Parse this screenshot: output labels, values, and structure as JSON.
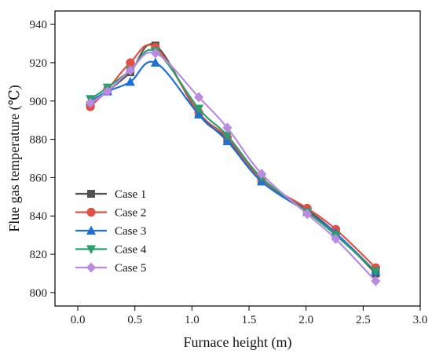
{
  "chart_data": {
    "type": "line",
    "xlabel": "Furnace height (m)",
    "ylabel": "Flue gas temperature (℃)",
    "xlim": [
      -0.2,
      3.0
    ],
    "ylim": [
      793,
      947
    ],
    "xticks": [
      0.0,
      0.5,
      1.0,
      1.5,
      2.0,
      2.5,
      3.0
    ],
    "xtick_labels": [
      "0.0",
      "0.5",
      "1.0",
      "1.5",
      "2.0",
      "2.5",
      "3.0"
    ],
    "yticks": [
      800,
      820,
      840,
      860,
      880,
      900,
      920,
      940
    ],
    "ytick_labels": [
      "800",
      "820",
      "840",
      "860",
      "880",
      "900",
      "920",
      "940"
    ],
    "grid": false,
    "legend_position": "left",
    "x": [
      0.11,
      0.26,
      0.46,
      0.68,
      1.06,
      1.31,
      1.61,
      2.01,
      2.26,
      2.61
    ],
    "series": [
      {
        "name": "Case 1",
        "color": "#505050",
        "marker": "square",
        "values": [
          898,
          905,
          915,
          929,
          893,
          880,
          858,
          843,
          831,
          810
        ]
      },
      {
        "name": "Case 2",
        "color": "#e05045",
        "marker": "circle",
        "values": [
          897,
          906,
          920,
          928,
          894,
          881,
          859,
          844,
          833,
          813
        ]
      },
      {
        "name": "Case 3",
        "color": "#1f6fd8",
        "marker": "triangle-up",
        "values": [
          900,
          905,
          910,
          920,
          893,
          879,
          858,
          842,
          831,
          811
        ]
      },
      {
        "name": "Case 4",
        "color": "#29a06b",
        "marker": "triangle-down",
        "values": [
          901,
          907,
          916,
          926,
          896,
          882,
          860,
          842,
          830,
          811
        ]
      },
      {
        "name": "Case 5",
        "color": "#b98ae0",
        "marker": "diamond",
        "values": [
          899,
          905,
          916,
          925,
          902,
          886,
          862,
          841,
          828,
          806
        ]
      }
    ]
  }
}
